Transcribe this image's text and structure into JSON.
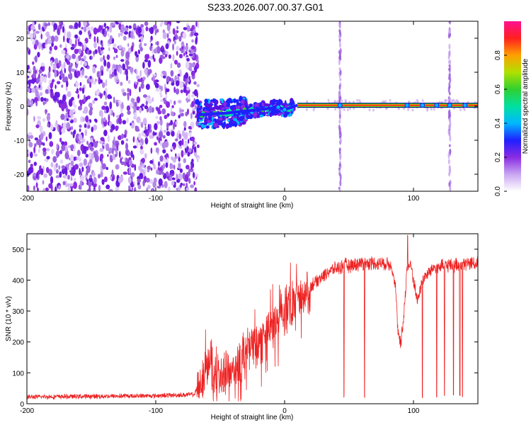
{
  "title": "S233.2026.007.00.37.G01",
  "chart_data": [
    {
      "type": "heatmap",
      "xlabel": "Height of straight line (km)",
      "ylabel": "Frequency (Hz)",
      "xlim": [
        -200,
        150
      ],
      "ylim": [
        -25,
        25
      ],
      "xticks": [
        -200,
        -100,
        0,
        100
      ],
      "yticks": [
        -20,
        -10,
        0,
        10,
        20
      ],
      "colorbar": {
        "label": "Normalized spectral amplitude",
        "range": [
          0,
          1
        ],
        "ticks": [
          "0.0",
          "0.2",
          "0.4",
          "0.6",
          "0.8"
        ],
        "colors": [
          "#ffffff",
          "#c9a6f2",
          "#8a2be2",
          "#2020ff",
          "#00b8ff",
          "#00e0a0",
          "#30d030",
          "#b0e000",
          "#ffa000",
          "#ff2020",
          "#ff1090"
        ]
      },
      "noise_region_x": [
        -200,
        -67
      ],
      "signal_line": {
        "points": [
          {
            "x": -67,
            "y": -2.5
          },
          {
            "x": -55,
            "y": -2.2
          },
          {
            "x": -45,
            "y": -2.0
          },
          {
            "x": -35,
            "y": -1.6
          },
          {
            "x": -25,
            "y": -1.2
          },
          {
            "x": -15,
            "y": -0.8
          },
          {
            "x": -5,
            "y": -0.3
          },
          {
            "x": 0,
            "y": -1.0
          },
          {
            "x": 10,
            "y": 0.3
          },
          {
            "x": 150,
            "y": 0.3
          }
        ]
      },
      "vertical_streaks_x": [
        43,
        128
      ]
    },
    {
      "type": "line",
      "xlabel": "Height of straight line (km)",
      "ylabel": "SNR (10 * v/v)",
      "xlim": [
        -200,
        150
      ],
      "ylim": [
        0,
        550
      ],
      "xticks": [
        -200,
        -100,
        0,
        100
      ],
      "yticks": [
        0,
        100,
        200,
        300,
        400,
        500
      ],
      "color": "#ee2222",
      "series": [
        {
          "name": "SNR",
          "envelope": [
            {
              "x": -200,
              "y": 22
            },
            {
              "x": -150,
              "y": 24
            },
            {
              "x": -100,
              "y": 26
            },
            {
              "x": -70,
              "y": 30
            },
            {
              "x": -65,
              "y": 80
            },
            {
              "x": -58,
              "y": 120
            },
            {
              "x": -50,
              "y": 90
            },
            {
              "x": -42,
              "y": 110
            },
            {
              "x": -35,
              "y": 130
            },
            {
              "x": -28,
              "y": 180
            },
            {
              "x": -20,
              "y": 190
            },
            {
              "x": -12,
              "y": 240
            },
            {
              "x": -5,
              "y": 270
            },
            {
              "x": 0,
              "y": 300
            },
            {
              "x": 8,
              "y": 330
            },
            {
              "x": 15,
              "y": 360
            },
            {
              "x": 25,
              "y": 400
            },
            {
              "x": 35,
              "y": 430
            },
            {
              "x": 45,
              "y": 445
            },
            {
              "x": 60,
              "y": 455
            },
            {
              "x": 75,
              "y": 455
            },
            {
              "x": 83,
              "y": 450
            },
            {
              "x": 86,
              "y": 380
            },
            {
              "x": 88,
              "y": 230
            },
            {
              "x": 90,
              "y": 190
            },
            {
              "x": 92,
              "y": 260
            },
            {
              "x": 95,
              "y": 440
            },
            {
              "x": 98,
              "y": 450
            },
            {
              "x": 103,
              "y": 330
            },
            {
              "x": 107,
              "y": 400
            },
            {
              "x": 115,
              "y": 440
            },
            {
              "x": 130,
              "y": 450
            },
            {
              "x": 150,
              "y": 455
            }
          ],
          "dropouts_x": [
            46,
            62,
            107,
            118,
            124,
            131,
            136,
            138
          ]
        }
      ]
    }
  ]
}
